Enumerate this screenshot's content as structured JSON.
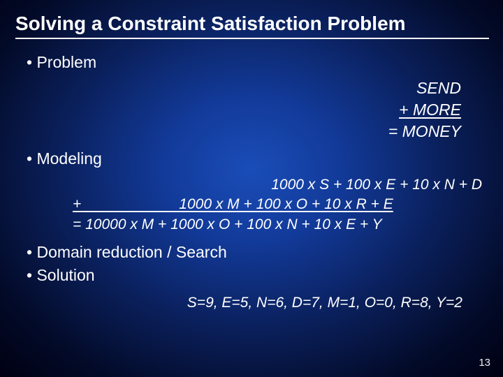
{
  "title": "Solving a Constraint Satisfaction Problem",
  "bullets": {
    "problem": "Problem",
    "modeling": "Modeling",
    "domain": "Domain reduction / Search",
    "solution": "Solution"
  },
  "problem_block": {
    "line1": "SEND",
    "line2": "+   MORE",
    "line3": "= MONEY"
  },
  "modeling_block": {
    "line1": "1000 x S + 100 x E + 10 x N + D",
    "line2_prefix": "+",
    "line2_rest": "                        1000 x M + 100 x O + 10 x R + E",
    "line3": "= 10000 x M + 1000 x O + 100 x N + 10 x E + Y"
  },
  "solution_text": "S=9, E=5, N=6, D=7, M=1, O=0, R=8, Y=2",
  "page_number": "13",
  "colors": {
    "text": "#ffffff",
    "bg_center": "#1a4db8",
    "bg_outer": "#000011"
  }
}
